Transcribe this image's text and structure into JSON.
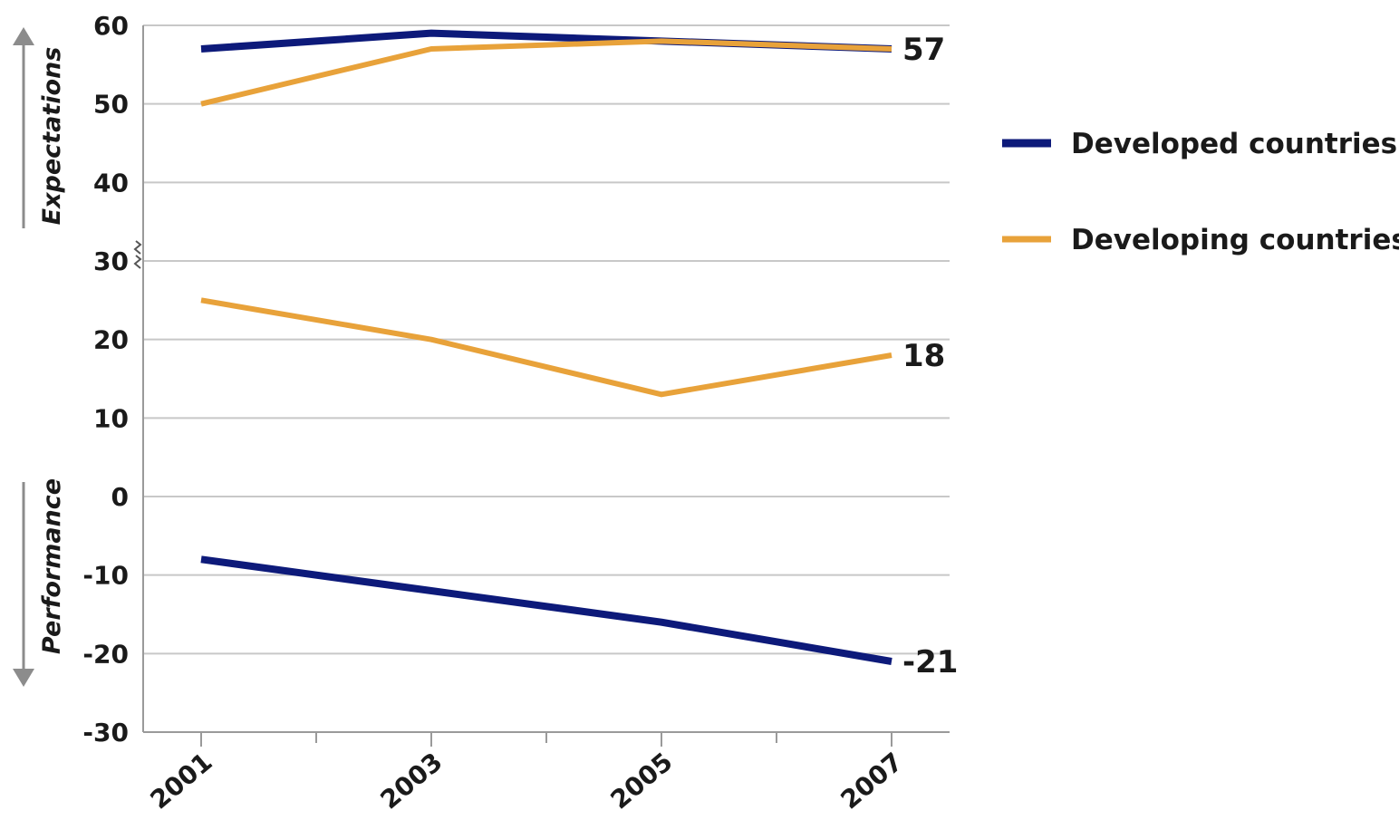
{
  "chart_data": {
    "type": "line",
    "x": [
      "2001",
      "2003",
      "2005",
      "2007"
    ],
    "y_ticks": [
      60,
      50,
      40,
      30,
      20,
      10,
      0,
      -10,
      -20,
      -30
    ],
    "ylim": [
      -30,
      60
    ],
    "axis_break_at": 30,
    "grid": true,
    "legend_position": "right",
    "side_labels": {
      "upper": "Expectations",
      "lower": "Performance"
    },
    "series": [
      {
        "name": "Developed countries",
        "color": "#0d1a7a",
        "segments": [
          {
            "part": "expectations",
            "values": [
              57,
              59,
              58,
              57
            ]
          },
          {
            "part": "performance",
            "values": [
              -8,
              -12,
              -16,
              -21
            ]
          }
        ]
      },
      {
        "name": "Developing countries",
        "color": "#e8a23a",
        "segments": [
          {
            "part": "expectations",
            "values": [
              50,
              57,
              58,
              57
            ]
          },
          {
            "part": "performance",
            "values": [
              25,
              20,
              13,
              18
            ]
          }
        ]
      }
    ],
    "end_labels": [
      {
        "text": "57",
        "series": 0,
        "segment": 0
      },
      {
        "text": "18",
        "series": 1,
        "segment": 1
      },
      {
        "text": "-21",
        "series": 0,
        "segment": 1
      }
    ]
  },
  "colors": {
    "grid": "#c8c8c8",
    "axis": "#9a9a9a",
    "arrow": "#8c8c8c"
  }
}
